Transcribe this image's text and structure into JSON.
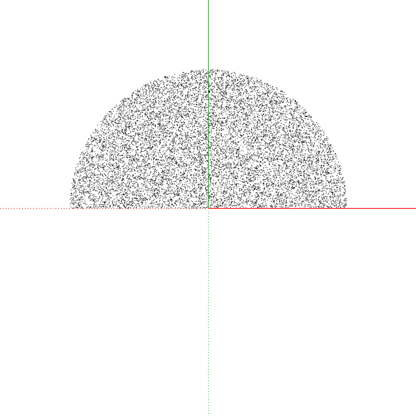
{
  "chart_data": {
    "type": "scatter",
    "distribution": "uniform-random-upper-half-disc",
    "point_count": 12000,
    "radius": 1.0,
    "xlim": [
      -1.5,
      1.5
    ],
    "ylim": [
      -1.5,
      1.5
    ],
    "grid": false,
    "legend": "none",
    "axes": {
      "positive_x": {
        "color": "#ff0000",
        "style": "solid"
      },
      "negative_x": {
        "color": "#ff0000",
        "style": "dotted"
      },
      "positive_y": {
        "color": "#00c800",
        "style": "solid"
      },
      "negative_y": {
        "color": "#00c800",
        "style": "dotted"
      }
    },
    "point_color": "#000000"
  }
}
